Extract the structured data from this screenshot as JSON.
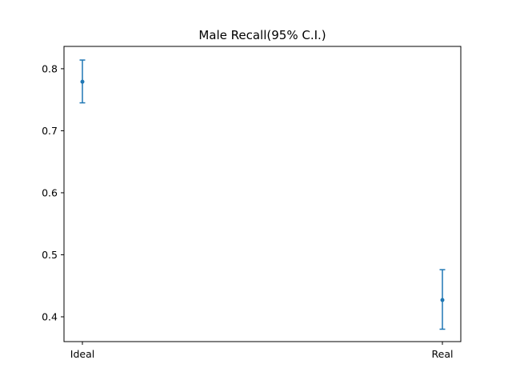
{
  "chart_data": {
    "type": "scatter",
    "title": "Male Recall(95% C.I.)",
    "xlabel": "",
    "ylabel": "",
    "categories": [
      "Ideal",
      "Real"
    ],
    "series": [
      {
        "values": [
          0.779,
          0.427
        ],
        "ci_low": [
          0.745,
          0.38
        ],
        "ci_high": [
          0.814,
          0.476
        ]
      }
    ],
    "ylim": [
      0.36,
      0.836
    ],
    "yticks": [
      0.4,
      0.5,
      0.6,
      0.7,
      0.8
    ],
    "ytick_labels": [
      "0.4",
      "0.5",
      "0.6",
      "0.7",
      "0.8"
    ],
    "grid": false,
    "color": "#1f77b4"
  }
}
